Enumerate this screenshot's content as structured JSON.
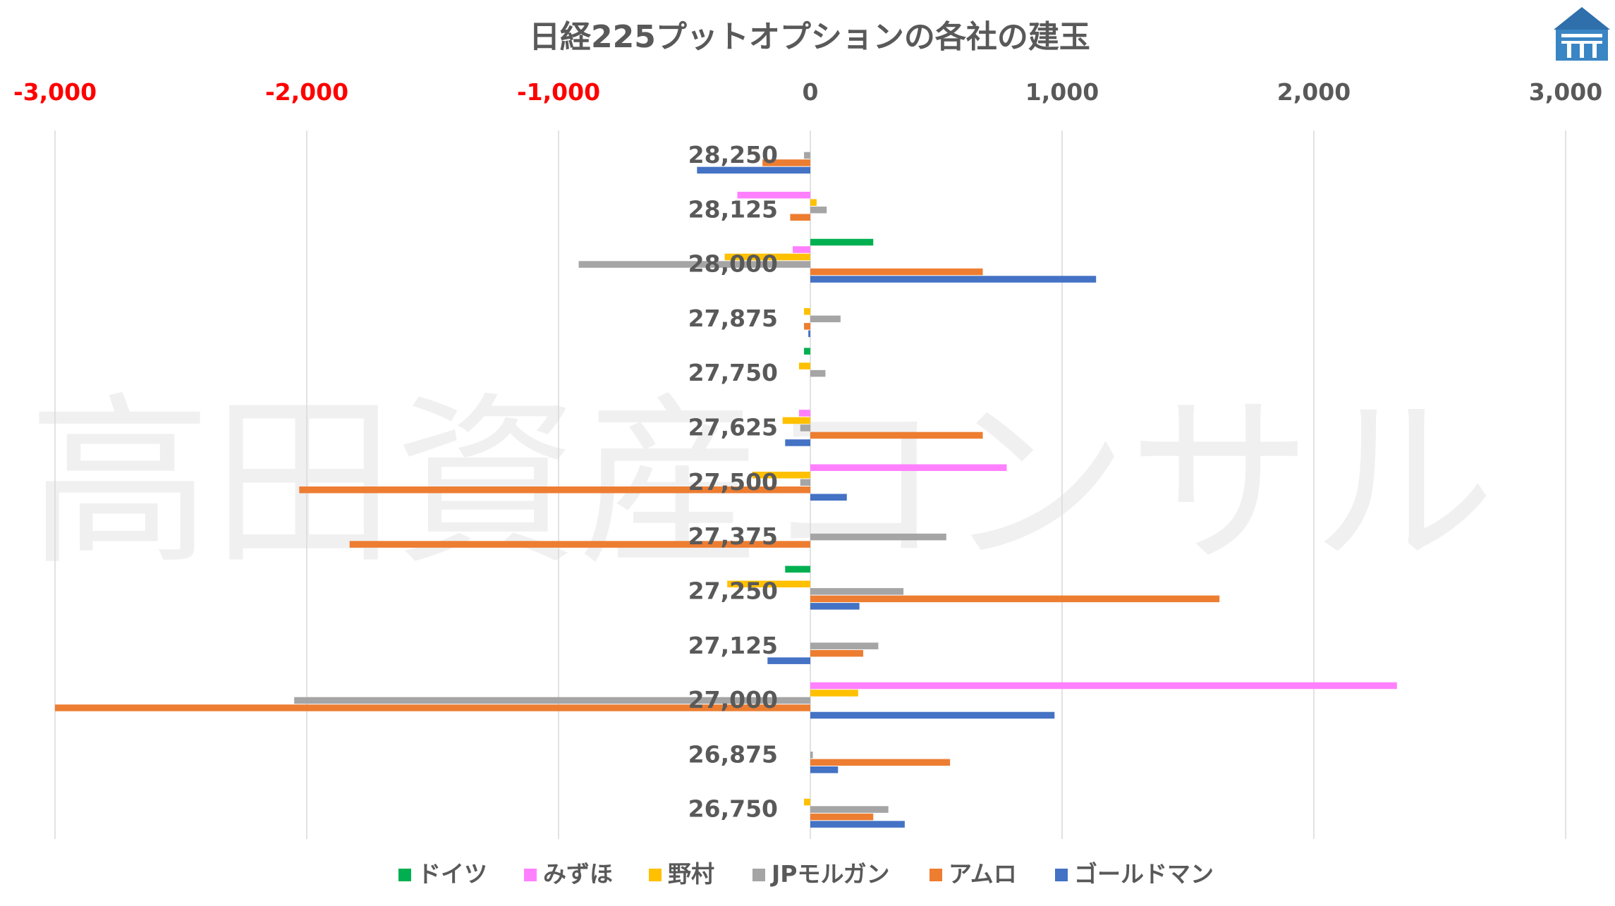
{
  "chart_data": {
    "type": "bar",
    "orientation": "horizontal",
    "title": "日経225プットオプションの各社の建玉",
    "watermark": "高田資産コンサル",
    "categories": [
      "28,250",
      "28,125",
      "28,000",
      "27,875",
      "27,750",
      "27,625",
      "27,500",
      "27,375",
      "27,250",
      "27,125",
      "27,000",
      "26,875",
      "26,750"
    ],
    "x_ticks": [
      "-3,000",
      "-2,000",
      "-1,000",
      "0",
      "1,000",
      "2,000",
      "3,000"
    ],
    "x_tick_values": [
      -3000,
      -2000,
      -1000,
      0,
      1000,
      2000,
      3000
    ],
    "xlim": [
      -3000,
      3000
    ],
    "negative_tick_color": "#ff0000",
    "positive_tick_color": "#595959",
    "grid": "vertical",
    "legend_position": "bottom",
    "series": [
      {
        "name": "ドイツ",
        "color": "#00b050",
        "values": [
          0,
          0,
          250,
          0,
          -25,
          0,
          0,
          0,
          -100,
          0,
          0,
          0,
          0
        ]
      },
      {
        "name": "みずほ",
        "color": "#ff80ff",
        "values": [
          0,
          -290,
          -70,
          0,
          0,
          -45,
          780,
          0,
          0,
          0,
          2330,
          0,
          0
        ]
      },
      {
        "name": "野村",
        "color": "#ffc000",
        "values": [
          0,
          25,
          -340,
          -25,
          -45,
          -110,
          -230,
          0,
          -330,
          0,
          190,
          0,
          -25
        ]
      },
      {
        "name": "JPモルガン",
        "color": "#a5a5a5",
        "values": [
          -25,
          65,
          -920,
          120,
          60,
          -40,
          -40,
          540,
          370,
          270,
          -2050,
          10,
          310
        ]
      },
      {
        "name": "アムロ",
        "color": "#ed7d31",
        "values": [
          -190,
          -80,
          685,
          -25,
          0,
          685,
          -2030,
          -1830,
          1625,
          210,
          -3000,
          555,
          250
        ]
      },
      {
        "name": "ゴールドマン",
        "color": "#4472c4",
        "values": [
          -450,
          0,
          1135,
          -8,
          0,
          -100,
          145,
          0,
          195,
          -170,
          970,
          110,
          375
        ]
      }
    ]
  }
}
